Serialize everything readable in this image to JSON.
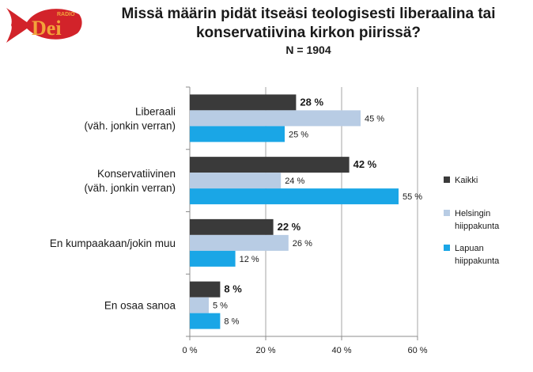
{
  "logo": {
    "small_text": "RADIO",
    "brand_text": "Dei",
    "colors": {
      "fish": "#d2232a",
      "text": "#f2a33a"
    }
  },
  "title": {
    "line1": "Missä määrin pidät itseäsi teologisesti liberaalina tai",
    "line2": "konservatiivina kirkon piirissä?",
    "subtitle": "N = 1904"
  },
  "chart_data": {
    "type": "bar",
    "orientation": "horizontal",
    "title": "Missä määrin pidät itseäsi teologisesti liberaalina tai konservatiivina kirkon piirissä?",
    "subtitle": "N = 1904",
    "categories": [
      [
        "Liberaali",
        "(väh. jonkin verran)"
      ],
      [
        "Konservatiivinen",
        "(väh. jonkin verran)"
      ],
      [
        "En kumpaakaan/jokin muu"
      ],
      [
        "En osaa sanoa"
      ]
    ],
    "series": [
      {
        "name": [
          "Kaikki"
        ],
        "values": [
          28,
          42,
          22,
          8
        ],
        "color": "#3a3a3a",
        "bold_labels": true
      },
      {
        "name": [
          "Helsingin",
          "hiippakunta"
        ],
        "values": [
          45,
          24,
          26,
          5
        ],
        "color": "#b8cce4",
        "bold_labels": false
      },
      {
        "name": [
          "Lapuan",
          "hiippakunta"
        ],
        "values": [
          25,
          55,
          12,
          8
        ],
        "color": "#1aa6e6",
        "bold_labels": false
      }
    ],
    "value_suffix": " %",
    "xlim": [
      0,
      60
    ],
    "xticks": [
      0,
      20,
      40,
      60
    ],
    "xtick_labels": [
      "0 %",
      "20 %",
      "40 %",
      "60 %"
    ],
    "grid": "vertical",
    "legend_position": "right"
  }
}
